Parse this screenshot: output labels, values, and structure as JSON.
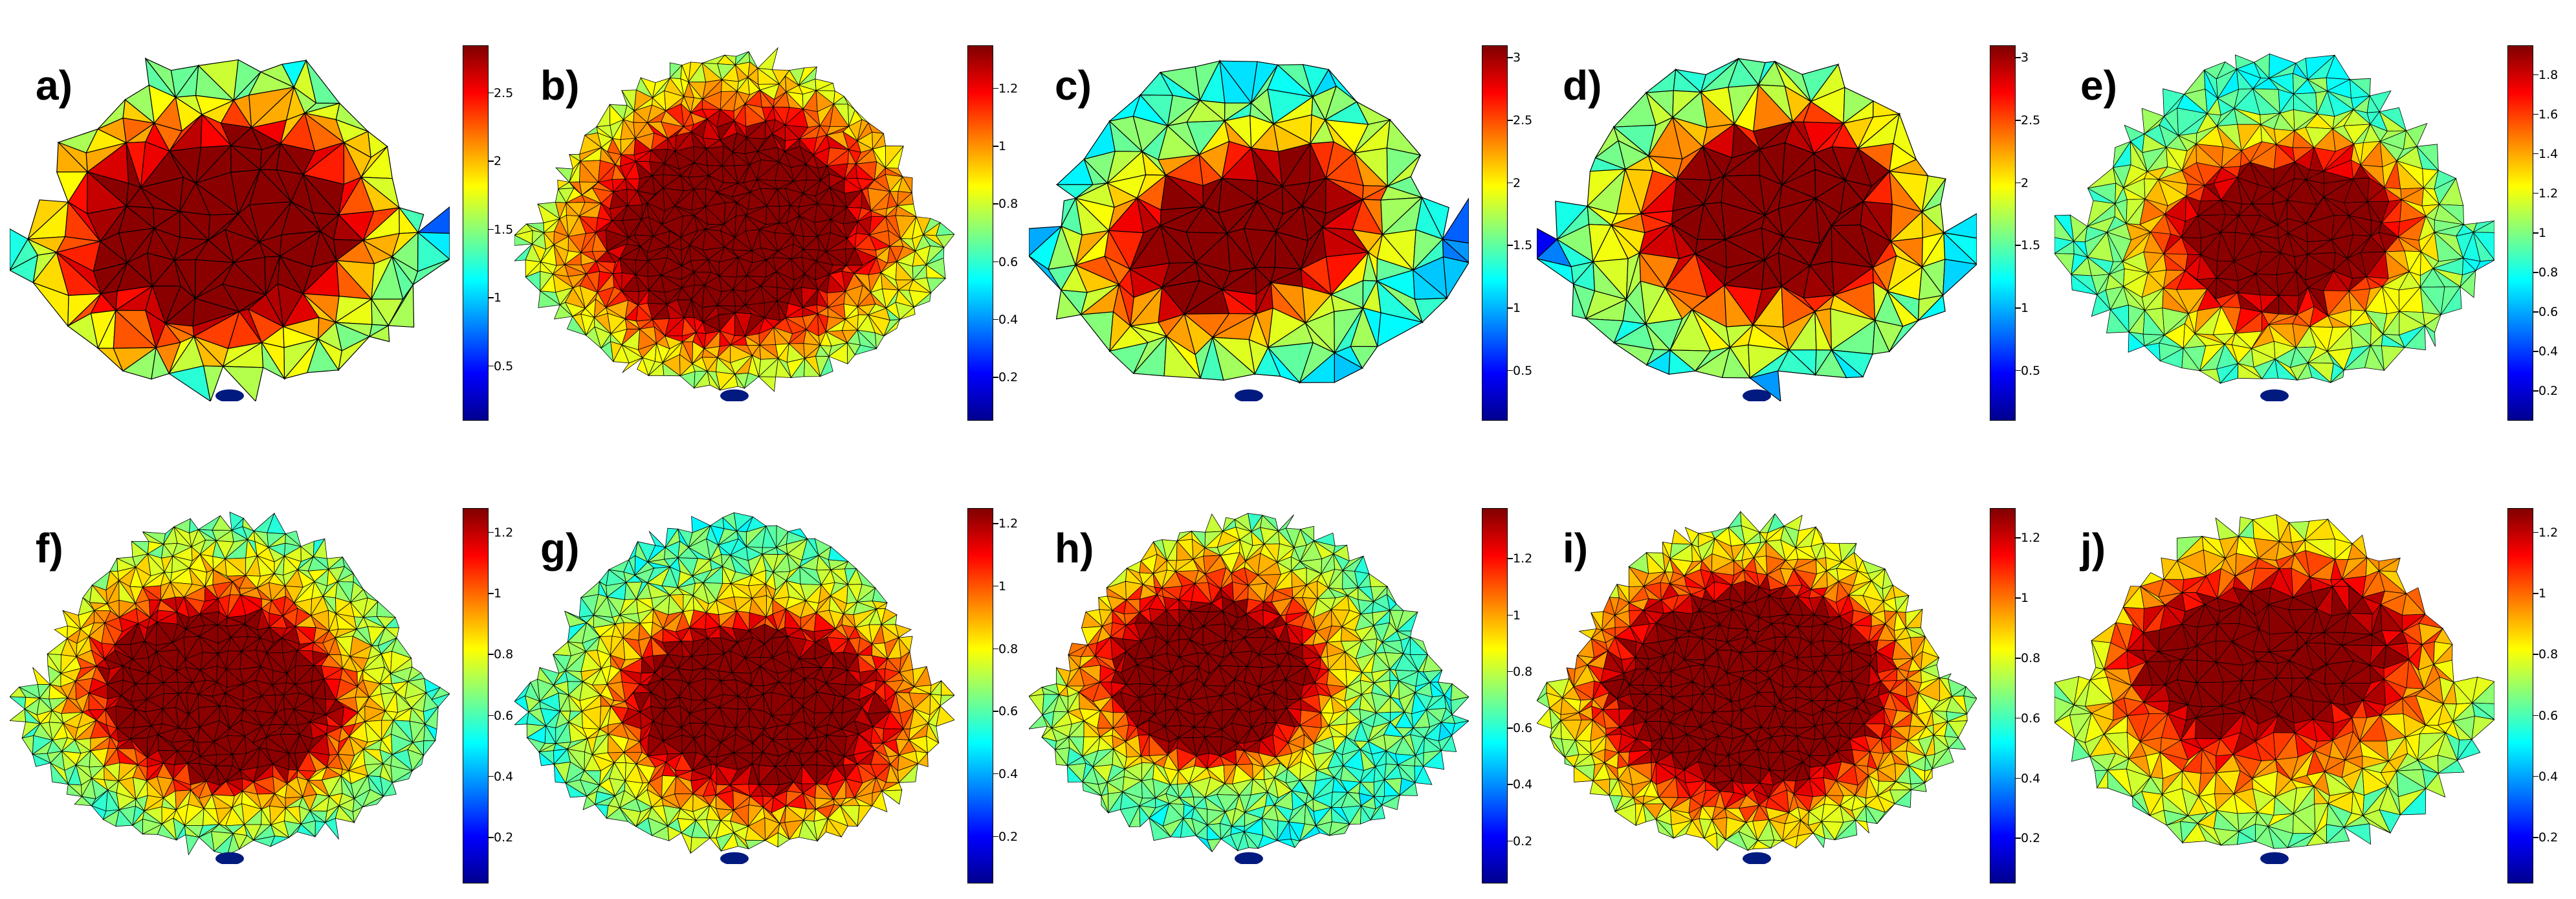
{
  "colors": {
    "colormap": [
      "#00008f",
      "#0000ff",
      "#0080ff",
      "#00ffff",
      "#80ff80",
      "#ffff00",
      "#ff8000",
      "#ff0000",
      "#800000"
    ],
    "edge": "#000000"
  },
  "panels": [
    {
      "label": "a)",
      "cmin": 0.1,
      "cmax": 2.85,
      "ticks": [
        "0.5",
        "1",
        "1.5",
        "2",
        "2.5"
      ],
      "tick_values": [
        0.5,
        1,
        1.5,
        2,
        2.5
      ],
      "mesh": "coarse",
      "hot": 0.85,
      "low_edge": true
    },
    {
      "label": "b)",
      "cmin": 0.05,
      "cmax": 1.35,
      "ticks": [
        "0.2",
        "0.4",
        "0.6",
        "0.8",
        "1",
        "1.2"
      ],
      "tick_values": [
        0.2,
        0.4,
        0.6,
        0.8,
        1,
        1.2
      ],
      "mesh": "fine",
      "hot": 0.75,
      "low_edge": false
    },
    {
      "label": "c)",
      "cmin": 0.1,
      "cmax": 3.1,
      "ticks": [
        "0.5",
        "1",
        "1.5",
        "2",
        "2.5",
        "3"
      ],
      "tick_values": [
        0.5,
        1,
        1.5,
        2,
        2.5,
        3
      ],
      "mesh": "coarse",
      "hot": 0.9,
      "low_edge": true
    },
    {
      "label": "d)",
      "cmin": 0.1,
      "cmax": 3.1,
      "ticks": [
        "0.5",
        "1",
        "1.5",
        "2",
        "2.5",
        "3"
      ],
      "tick_values": [
        0.5,
        1,
        1.5,
        2,
        2.5,
        3
      ],
      "mesh": "coarse",
      "hot": 0.82,
      "low_edge": true
    },
    {
      "label": "e)",
      "cmin": 0.05,
      "cmax": 1.95,
      "ticks": [
        "0.2",
        "0.4",
        "0.6",
        "0.8",
        "1",
        "1.2",
        "1.4",
        "1.6",
        "1.8"
      ],
      "tick_values": [
        0.2,
        0.4,
        0.6,
        0.8,
        1,
        1.2,
        1.4,
        1.6,
        1.8
      ],
      "mesh": "medium",
      "hot": 0.8,
      "low_edge": false
    },
    {
      "label": "f)",
      "cmin": 0.05,
      "cmax": 1.28,
      "ticks": [
        "0.2",
        "0.4",
        "0.6",
        "0.8",
        "1",
        "1.2"
      ],
      "tick_values": [
        0.2,
        0.4,
        0.6,
        0.8,
        1,
        1.2
      ],
      "mesh": "fine",
      "hot": 0.9,
      "low_edge": false
    },
    {
      "label": "g)",
      "cmin": 0.05,
      "cmax": 1.25,
      "ticks": [
        "0.2",
        "0.4",
        "0.6",
        "0.8",
        "1",
        "1.2"
      ],
      "tick_values": [
        0.2,
        0.4,
        0.6,
        0.8,
        1,
        1.2
      ],
      "mesh": "fine",
      "hot": 0.75,
      "low_edge": false
    },
    {
      "label": "h)",
      "cmin": 0.05,
      "cmax": 1.38,
      "ticks": [
        "0.2",
        "0.4",
        "0.6",
        "0.8",
        "1",
        "1.2"
      ],
      "tick_values": [
        0.2,
        0.4,
        0.6,
        0.8,
        1,
        1.2
      ],
      "mesh": "fine",
      "hot": 0.95,
      "low_edge": false
    },
    {
      "label": "i)",
      "cmin": 0.05,
      "cmax": 1.3,
      "ticks": [
        "0.2",
        "0.4",
        "0.6",
        "0.8",
        "1",
        "1.2"
      ],
      "tick_values": [
        0.2,
        0.4,
        0.6,
        0.8,
        1,
        1.2
      ],
      "mesh": "fine",
      "hot": 0.85,
      "low_edge": false
    },
    {
      "label": "j)",
      "cmin": 0.05,
      "cmax": 1.28,
      "ticks": [
        "0.2",
        "0.4",
        "0.6",
        "0.8",
        "1",
        "1.2"
      ],
      "tick_values": [
        0.2,
        0.4,
        0.6,
        0.8,
        1,
        1.2
      ],
      "mesh": "medium",
      "hot": 0.78,
      "low_edge": false
    }
  ]
}
